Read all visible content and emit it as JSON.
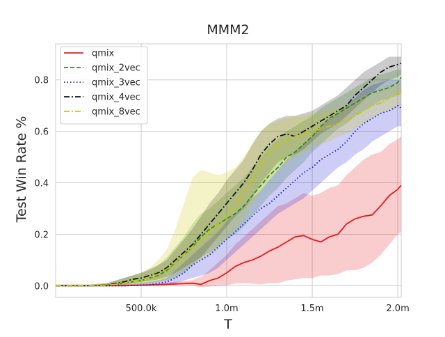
{
  "chart_data": {
    "type": "line",
    "title": "MMM2",
    "xlabel": "T",
    "ylabel": "Test Win Rate %",
    "xlim": [
      0,
      2020000
    ],
    "ylim": [
      -0.045,
      0.94
    ],
    "x_ticks": [
      500000,
      1000000,
      1500000,
      2000000
    ],
    "x_tick_labels": [
      "500.0k",
      "1.0m",
      "1.5m",
      "2.0m"
    ],
    "y_ticks": [
      0.0,
      0.2,
      0.4,
      0.6,
      0.8
    ],
    "y_tick_labels": [
      "0.0",
      "0.2",
      "0.4",
      "0.6",
      "0.8"
    ],
    "grid": true,
    "legend_position": "top-left",
    "series": [
      {
        "name": "qmix",
        "color": "#e41a1c",
        "style": "solid",
        "x": [
          0,
          200000,
          400000,
          600000,
          700000,
          800000,
          850000,
          900000,
          950000,
          1000000,
          1050000,
          1100000,
          1150000,
          1200000,
          1250000,
          1300000,
          1350000,
          1400000,
          1450000,
          1500000,
          1550000,
          1600000,
          1650000,
          1700000,
          1750000,
          1800000,
          1850000,
          1900000,
          1950000,
          2000000,
          2020000
        ],
        "y": [
          0,
          0,
          0,
          0.004,
          0.007,
          0.01,
          0.005,
          0.02,
          0.03,
          0.05,
          0.075,
          0.09,
          0.1,
          0.115,
          0.135,
          0.15,
          0.17,
          0.19,
          0.195,
          0.18,
          0.17,
          0.19,
          0.2,
          0.24,
          0.26,
          0.27,
          0.275,
          0.31,
          0.35,
          0.375,
          0.39
        ],
        "band_lower": [
          0,
          0,
          0,
          0,
          0,
          0,
          -0.005,
          -0.003,
          0,
          0.002,
          0.008,
          0.01,
          0.008,
          0.005,
          0.01,
          0.01,
          0.02,
          0.025,
          0.03,
          0.03,
          0.04,
          0.04,
          0.045,
          0.06,
          0.06,
          0.07,
          0.09,
          0.12,
          0.16,
          0.2,
          0.21
        ],
        "band_upper": [
          0.003,
          0.003,
          0.004,
          0.01,
          0.015,
          0.022,
          0.035,
          0.06,
          0.09,
          0.12,
          0.16,
          0.19,
          0.22,
          0.25,
          0.28,
          0.31,
          0.32,
          0.34,
          0.36,
          0.35,
          0.36,
          0.38,
          0.39,
          0.43,
          0.46,
          0.49,
          0.51,
          0.52,
          0.55,
          0.57,
          0.58
        ]
      },
      {
        "name": "qmix_2vec",
        "color": "#2e8b1e",
        "style": "dashed",
        "x": [
          0,
          200000,
          300000,
          400000,
          500000,
          550000,
          600000,
          650000,
          700000,
          750000,
          800000,
          850000,
          900000,
          950000,
          1000000,
          1050000,
          1100000,
          1150000,
          1200000,
          1250000,
          1300000,
          1350000,
          1400000,
          1450000,
          1500000,
          1550000,
          1600000,
          1650000,
          1700000,
          1750000,
          1800000,
          1850000,
          1900000,
          1950000,
          2000000,
          2020000
        ],
        "y": [
          0,
          0,
          0.002,
          0.01,
          0.02,
          0.03,
          0.04,
          0.06,
          0.09,
          0.12,
          0.15,
          0.19,
          0.22,
          0.24,
          0.26,
          0.28,
          0.31,
          0.35,
          0.39,
          0.43,
          0.46,
          0.5,
          0.52,
          0.55,
          0.58,
          0.62,
          0.65,
          0.67,
          0.69,
          0.71,
          0.73,
          0.75,
          0.76,
          0.77,
          0.79,
          0.81
        ],
        "band_lower": [
          0,
          0,
          0,
          0,
          0.005,
          0.01,
          0.015,
          0.02,
          0.03,
          0.05,
          0.08,
          0.11,
          0.13,
          0.15,
          0.18,
          0.2,
          0.23,
          0.27,
          0.31,
          0.35,
          0.38,
          0.42,
          0.45,
          0.48,
          0.52,
          0.55,
          0.58,
          0.61,
          0.63,
          0.66,
          0.68,
          0.7,
          0.72,
          0.73,
          0.74,
          0.75
        ],
        "band_upper": [
          0.005,
          0.005,
          0.01,
          0.03,
          0.05,
          0.06,
          0.08,
          0.11,
          0.15,
          0.19,
          0.24,
          0.28,
          0.3,
          0.33,
          0.36,
          0.39,
          0.42,
          0.46,
          0.5,
          0.54,
          0.57,
          0.6,
          0.62,
          0.64,
          0.66,
          0.69,
          0.71,
          0.73,
          0.75,
          0.77,
          0.79,
          0.81,
          0.82,
          0.83,
          0.84,
          0.84
        ]
      },
      {
        "name": "qmix_3vec",
        "color": "#1a1ad6",
        "style": "dotted",
        "x": [
          0,
          200000,
          400000,
          500000,
          550000,
          600000,
          650000,
          700000,
          750000,
          800000,
          850000,
          900000,
          950000,
          1000000,
          1050000,
          1100000,
          1150000,
          1200000,
          1250000,
          1300000,
          1350000,
          1400000,
          1450000,
          1500000,
          1550000,
          1600000,
          1650000,
          1700000,
          1750000,
          1800000,
          1850000,
          1900000,
          1950000,
          2000000,
          2020000
        ],
        "y": [
          0,
          0,
          0,
          0.002,
          0.004,
          0.01,
          0.015,
          0.03,
          0.05,
          0.08,
          0.1,
          0.12,
          0.15,
          0.18,
          0.21,
          0.24,
          0.27,
          0.3,
          0.32,
          0.35,
          0.38,
          0.41,
          0.44,
          0.46,
          0.49,
          0.51,
          0.53,
          0.56,
          0.6,
          0.63,
          0.65,
          0.67,
          0.68,
          0.7,
          0.69
        ],
        "band_lower": [
          0,
          0,
          0,
          0,
          0,
          0.002,
          0.005,
          0.01,
          0.02,
          0.03,
          0.04,
          0.05,
          0.07,
          0.1,
          0.13,
          0.16,
          0.19,
          0.22,
          0.25,
          0.28,
          0.3,
          0.32,
          0.34,
          0.37,
          0.4,
          0.43,
          0.46,
          0.48,
          0.51,
          0.53,
          0.56,
          0.58,
          0.6,
          0.62,
          0.62
        ],
        "band_upper": [
          0.003,
          0.003,
          0.005,
          0.01,
          0.015,
          0.02,
          0.03,
          0.06,
          0.09,
          0.12,
          0.15,
          0.18,
          0.21,
          0.25,
          0.28,
          0.31,
          0.34,
          0.37,
          0.41,
          0.45,
          0.49,
          0.52,
          0.55,
          0.58,
          0.62,
          0.65,
          0.67,
          0.7,
          0.73,
          0.76,
          0.78,
          0.79,
          0.8,
          0.8,
          0.8
        ]
      },
      {
        "name": "qmix_4vec",
        "color": "#111111",
        "style": "dashdot",
        "x": [
          0,
          200000,
          300000,
          400000,
          450000,
          500000,
          550000,
          600000,
          650000,
          700000,
          750000,
          800000,
          850000,
          900000,
          950000,
          1000000,
          1050000,
          1100000,
          1150000,
          1200000,
          1250000,
          1300000,
          1350000,
          1400000,
          1450000,
          1500000,
          1550000,
          1600000,
          1650000,
          1700000,
          1750000,
          1800000,
          1850000,
          1900000,
          1950000,
          2000000,
          2020000
        ],
        "y": [
          0,
          0,
          0.003,
          0.015,
          0.025,
          0.03,
          0.04,
          0.05,
          0.07,
          0.1,
          0.13,
          0.16,
          0.2,
          0.24,
          0.28,
          0.32,
          0.36,
          0.4,
          0.45,
          0.51,
          0.55,
          0.58,
          0.59,
          0.58,
          0.6,
          0.62,
          0.64,
          0.66,
          0.68,
          0.7,
          0.74,
          0.77,
          0.8,
          0.83,
          0.85,
          0.86,
          0.865
        ],
        "band_lower": [
          0,
          0,
          0,
          0.003,
          0.01,
          0.015,
          0.02,
          0.025,
          0.035,
          0.05,
          0.07,
          0.09,
          0.11,
          0.15,
          0.19,
          0.23,
          0.27,
          0.3,
          0.34,
          0.4,
          0.44,
          0.48,
          0.5,
          0.51,
          0.53,
          0.56,
          0.59,
          0.61,
          0.63,
          0.66,
          0.69,
          0.72,
          0.75,
          0.78,
          0.8,
          0.81,
          0.82
        ],
        "band_upper": [
          0.004,
          0.004,
          0.01,
          0.03,
          0.04,
          0.05,
          0.065,
          0.08,
          0.1,
          0.14,
          0.18,
          0.22,
          0.27,
          0.32,
          0.36,
          0.41,
          0.45,
          0.49,
          0.55,
          0.6,
          0.63,
          0.65,
          0.66,
          0.66,
          0.67,
          0.68,
          0.7,
          0.72,
          0.74,
          0.77,
          0.8,
          0.83,
          0.85,
          0.87,
          0.89,
          0.89,
          0.89
        ]
      },
      {
        "name": "qmix_8vec",
        "color": "#c8c800",
        "style": "dashdot",
        "x": [
          0,
          200000,
          300000,
          400000,
          450000,
          500000,
          550000,
          600000,
          650000,
          700000,
          750000,
          800000,
          850000,
          900000,
          950000,
          1000000,
          1050000,
          1100000,
          1150000,
          1200000,
          1250000,
          1300000,
          1350000,
          1400000,
          1450000,
          1500000,
          1550000,
          1600000,
          1650000,
          1700000,
          1750000,
          1800000,
          1850000,
          1900000,
          1950000,
          2000000,
          2020000
        ],
        "y": [
          0,
          0,
          0.002,
          0.01,
          0.015,
          0.02,
          0.03,
          0.045,
          0.065,
          0.09,
          0.12,
          0.15,
          0.18,
          0.21,
          0.24,
          0.27,
          0.31,
          0.36,
          0.42,
          0.47,
          0.52,
          0.55,
          0.57,
          0.58,
          0.59,
          0.6,
          0.61,
          0.62,
          0.63,
          0.64,
          0.66,
          0.68,
          0.7,
          0.71,
          0.73,
          0.75,
          0.74
        ],
        "band_lower": [
          0,
          0,
          0,
          0,
          0.003,
          0.005,
          0.01,
          0.015,
          0.025,
          0.04,
          0.06,
          0.08,
          0.1,
          0.12,
          0.15,
          0.18,
          0.22,
          0.26,
          0.32,
          0.37,
          0.41,
          0.45,
          0.48,
          0.5,
          0.52,
          0.54,
          0.55,
          0.56,
          0.58,
          0.59,
          0.61,
          0.63,
          0.65,
          0.67,
          0.68,
          0.69,
          0.7
        ],
        "band_upper": [
          0.004,
          0.004,
          0.01,
          0.025,
          0.04,
          0.05,
          0.07,
          0.1,
          0.14,
          0.22,
          0.32,
          0.42,
          0.45,
          0.44,
          0.43,
          0.44,
          0.46,
          0.5,
          0.55,
          0.6,
          0.63,
          0.64,
          0.65,
          0.66,
          0.66,
          0.67,
          0.67,
          0.68,
          0.69,
          0.7,
          0.72,
          0.74,
          0.75,
          0.77,
          0.78,
          0.79,
          0.79
        ]
      }
    ]
  }
}
